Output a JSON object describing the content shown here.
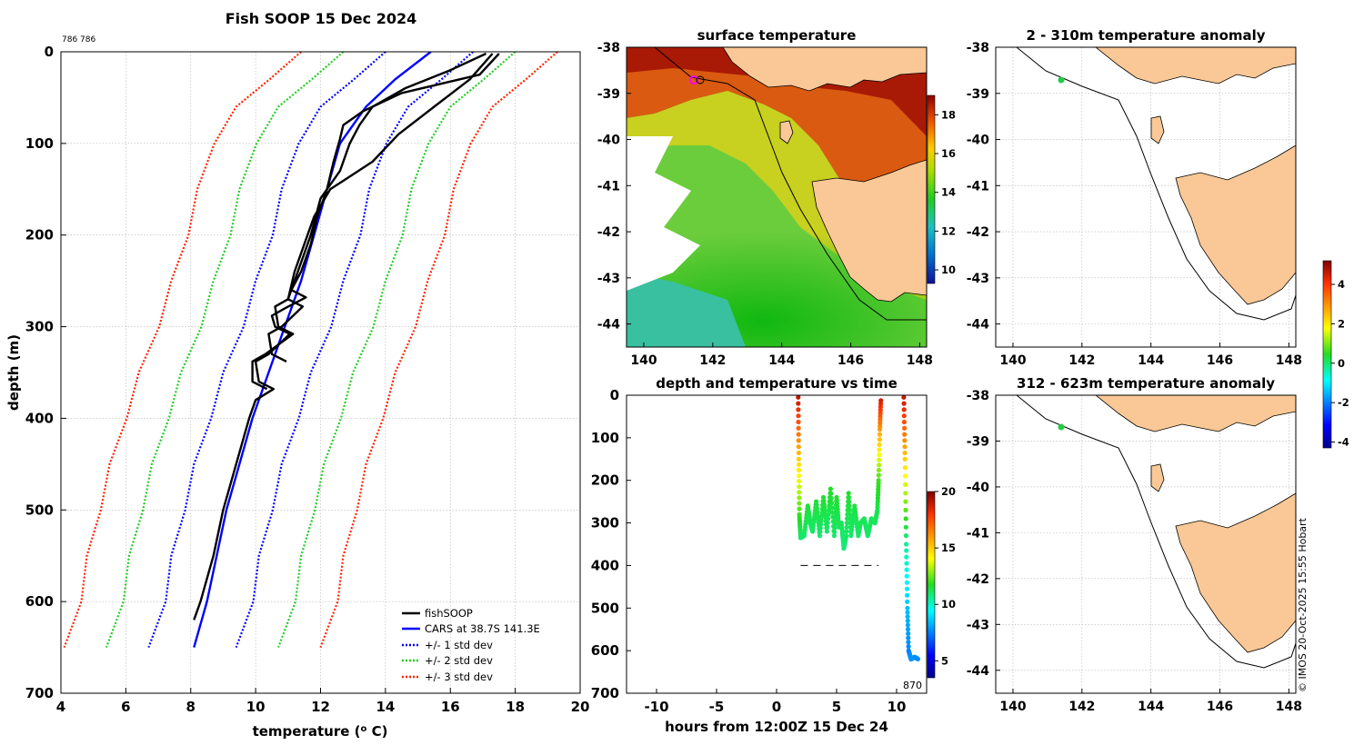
{
  "figure": {
    "title": "Fish SOOP 15 Dec 2024",
    "id_label": "786 786",
    "credit": "© IMOS 20-Oct-2025 15:55 Hobart"
  },
  "colors": {
    "fish": "#000000",
    "cars": "#0000ff",
    "std1": "#0000ff",
    "std2": "#22cc22",
    "std3": "#ff2200",
    "land": "#f9c896",
    "grid": "#b4b4b4"
  },
  "chart_data": [
    {
      "id": "profile",
      "type": "line",
      "title": "Fish SOOP 15 Dec 2024",
      "xlabel": "temperature (o C)",
      "ylabel": "depth (m)",
      "xlim": [
        4,
        20
      ],
      "ylim": [
        0,
        700
      ],
      "y_reversed": true,
      "grid": true,
      "xticks": [
        4,
        6,
        8,
        10,
        12,
        14,
        16,
        18,
        20
      ],
      "yticks": [
        0,
        100,
        200,
        300,
        400,
        500,
        600,
        700
      ],
      "legend_position": "bottom-right",
      "legend": [
        "fishSOOP",
        "CARS at 38.7S 141.3E",
        "+/- 1 std dev",
        "+/- 2 std dev",
        "+/- 3 std dev"
      ],
      "cars": {
        "depth": [
          0,
          30,
          60,
          100,
          150,
          200,
          250,
          300,
          350,
          400,
          450,
          500,
          550,
          600,
          650
        ],
        "temp": [
          15.4,
          14.3,
          13.4,
          12.6,
          12.2,
          11.8,
          11.4,
          10.9,
          10.4,
          9.9,
          9.5,
          9.1,
          8.8,
          8.5,
          8.1
        ]
      },
      "std_dev": [
        1.35,
        2.65,
        3.95
      ],
      "fish_profiles": [
        {
          "depth": [
            2,
            25,
            45,
            65,
            80,
            95,
            120,
            150,
            180,
            210,
            240,
            260,
            280,
            300,
            330,
            360,
            380,
            400,
            450,
            500,
            550,
            600,
            610,
            620
          ],
          "temp": [
            17.5,
            16.9,
            14.5,
            13.3,
            12.7,
            12.6,
            12.4,
            12.2,
            11.9,
            11.7,
            11.4,
            11.1,
            10.9,
            10.6,
            10.4,
            10.1,
            10.0,
            9.8,
            9.4,
            9.0,
            8.7,
            8.3,
            8.2,
            8.1
          ]
        },
        {
          "depth": [
            2,
            20,
            40,
            60,
            80,
            100,
            130,
            160,
            200,
            240,
            270,
            300,
            330,
            360
          ],
          "temp": [
            17.1,
            16.0,
            14.6,
            13.6,
            13.2,
            12.9,
            12.6,
            12.0,
            11.7,
            11.3,
            11.0,
            10.7,
            10.3,
            9.9
          ]
        },
        {
          "depth": [
            2,
            30,
            60,
            90,
            120,
            150,
            180,
            200,
            240,
            270,
            300,
            330
          ],
          "temp": [
            17.3,
            16.6,
            15.5,
            14.4,
            13.6,
            12.3,
            11.8,
            11.6,
            11.2,
            11.0,
            10.8,
            10.5
          ]
        }
      ]
    },
    {
      "id": "sst_map",
      "type": "heatmap",
      "title": "surface temperature",
      "xlim": [
        139.5,
        148.2
      ],
      "ylim": [
        -44.5,
        -38
      ],
      "xticks": [
        140,
        142,
        144,
        146,
        148
      ],
      "yticks": [
        -38,
        -39,
        -40,
        -41,
        -42,
        -43,
        -44
      ],
      "colorbar_range": [
        9.3,
        19
      ],
      "colorbar_ticks": [
        10,
        12,
        14,
        16,
        18
      ],
      "marker": {
        "lon": 141.3,
        "lat": -38.7
      }
    },
    {
      "id": "depth_time",
      "type": "scatter",
      "title": "depth and temperature vs time",
      "xlabel": "hours from 12:00Z 15 Dec 24",
      "xlim": [
        -12.5,
        12.5
      ],
      "ylim": [
        0,
        700
      ],
      "y_reversed": true,
      "xticks": [
        -10,
        -5,
        0,
        5,
        10
      ],
      "yticks": [
        0,
        100,
        200,
        300,
        400,
        500,
        600,
        700
      ],
      "colorbar_range": [
        3.5,
        20
      ],
      "colorbar_ticks": [
        5,
        10,
        15,
        20
      ],
      "annotation": "870",
      "dashed_line": {
        "x": [
          2,
          8.5
        ],
        "depth": 400
      },
      "track": {
        "hours": [
          1.8,
          1.85,
          1.9,
          2.0,
          2.3,
          2.6,
          2.8,
          3.0,
          3.3,
          3.6,
          3.9,
          4.2,
          4.5,
          4.8,
          5.0,
          5.2,
          5.4,
          5.6,
          5.8,
          6.0,
          6.2,
          6.5,
          6.8,
          7.0,
          7.3,
          7.6,
          7.9,
          8.2,
          8.4,
          8.5,
          8.6,
          8.7,
          10.6,
          10.7,
          10.8,
          10.9,
          11.0,
          11.2,
          11.5,
          11.8
        ],
        "depth": [
          5,
          150,
          280,
          335,
          330,
          260,
          300,
          320,
          250,
          330,
          240,
          320,
          220,
          330,
          240,
          310,
          300,
          360,
          330,
          230,
          330,
          260,
          330,
          300,
          290,
          330,
          290,
          300,
          270,
          200,
          80,
          5,
          5,
          150,
          350,
          500,
          600,
          620,
          615,
          620
        ],
        "temp": [
          19,
          15,
          12,
          11,
          11,
          11.5,
          11.2,
          11,
          11.5,
          11,
          11.6,
          11,
          11.7,
          11,
          11.6,
          11.1,
          11.2,
          10.8,
          11,
          11.6,
          11,
          11.4,
          11,
          11.2,
          11.2,
          11,
          11.2,
          11.1,
          11.3,
          12,
          16,
          19,
          19,
          15,
          10.5,
          8.5,
          7.5,
          7.8,
          7.8,
          7.6
        ]
      }
    },
    {
      "id": "anomaly_shallow",
      "type": "heatmap",
      "title": "2 - 310m temperature anomaly",
      "xlim": [
        139.5,
        148.2
      ],
      "ylim": [
        -44.5,
        -38
      ],
      "xticks": [
        140,
        142,
        144,
        146,
        148
      ],
      "yticks": [
        -38,
        -39,
        -40,
        -41,
        -42,
        -43,
        -44
      ],
      "colorbar_range": [
        -4.3,
        5.2
      ],
      "colorbar_ticks": [
        -4,
        -2,
        0,
        2,
        4
      ],
      "obs": {
        "lon": 141.3,
        "lat": -38.7
      }
    },
    {
      "id": "anomaly_deep",
      "type": "heatmap",
      "title": "312 - 623m temperature anomaly",
      "xlim": [
        139.5,
        148.2
      ],
      "ylim": [
        -44.5,
        -38
      ],
      "xticks": [
        140,
        142,
        144,
        146,
        148
      ],
      "yticks": [
        -38,
        -39,
        -40,
        -41,
        -42,
        -43,
        -44
      ],
      "obs": {
        "lon": 141.3,
        "lat": -38.7
      }
    }
  ]
}
